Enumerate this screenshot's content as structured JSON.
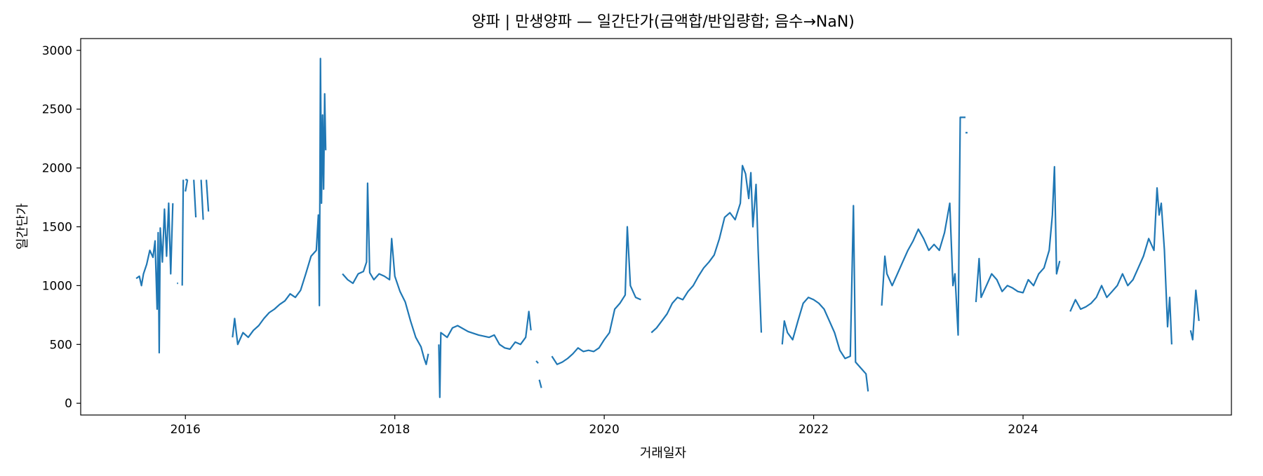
{
  "chart_data": {
    "type": "line",
    "title": "양파 | 만생양파 — 일간단가(금액합/반입량합; 음수→NaN)",
    "xlabel": "거래일자",
    "ylabel": "일간단가",
    "xlim": [
      2015.0,
      2025.99
    ],
    "ylim": [
      -100,
      3100
    ],
    "x_ticks": [
      2016,
      2018,
      2020,
      2022,
      2024
    ],
    "x_tick_labels": [
      "2016",
      "2018",
      "2020",
      "2022",
      "2024"
    ],
    "y_ticks": [
      0,
      500,
      1000,
      1500,
      2000,
      2500,
      3000
    ],
    "y_tick_labels": [
      "0",
      "500",
      "1000",
      "1500",
      "2000",
      "2500",
      "3000"
    ],
    "grid": false,
    "legend": "none",
    "line_color": "#1f77b4",
    "series": [
      {
        "segments": [
          [
            [
              2015.53,
              1060
            ],
            [
              2015.56,
              1080
            ],
            [
              2015.58,
              1000
            ],
            [
              2015.6,
              1100
            ],
            [
              2015.63,
              1180
            ],
            [
              2015.66,
              1300
            ],
            [
              2015.69,
              1240
            ],
            [
              2015.71,
              1380
            ],
            [
              2015.73,
              800
            ],
            [
              2015.74,
              1450
            ],
            [
              2015.75,
              430
            ],
            [
              2015.76,
              1490
            ],
            [
              2015.78,
              1200
            ],
            [
              2015.8,
              1650
            ],
            [
              2015.82,
              1250
            ],
            [
              2015.84,
              1700
            ],
            [
              2015.86,
              1100
            ],
            [
              2015.88,
              1700
            ]
          ],
          [
            [
              2015.92,
              1020
            ],
            [
              2015.93,
              1020
            ]
          ],
          [
            [
              2015.97,
              1000
            ],
            [
              2015.98,
              1900
            ]
          ],
          [
            [
              2016.0,
              1800
            ],
            [
              2016.02,
              1900
            ]
          ],
          [
            [
              2016.0,
              1900
            ],
            [
              2016.02,
              1900
            ]
          ],
          [
            [
              2016.08,
              1900
            ],
            [
              2016.1,
              1580
            ]
          ],
          [
            [
              2016.15,
              1900
            ],
            [
              2016.17,
              1560
            ]
          ],
          [
            [
              2016.2,
              1900
            ],
            [
              2016.22,
              1630
            ]
          ],
          [
            [
              2016.45,
              560
            ],
            [
              2016.47,
              720
            ],
            [
              2016.5,
              500
            ],
            [
              2016.55,
              600
            ],
            [
              2016.6,
              560
            ],
            [
              2016.65,
              620
            ],
            [
              2016.7,
              660
            ],
            [
              2016.75,
              720
            ],
            [
              2016.8,
              770
            ],
            [
              2016.85,
              800
            ],
            [
              2016.9,
              840
            ],
            [
              2016.95,
              870
            ],
            [
              2017.0,
              930
            ],
            [
              2017.05,
              900
            ],
            [
              2017.1,
              960
            ],
            [
              2017.15,
              1100
            ],
            [
              2017.2,
              1250
            ],
            [
              2017.25,
              1300
            ],
            [
              2017.27,
              1600
            ],
            [
              2017.28,
              830
            ],
            [
              2017.29,
              2930
            ],
            [
              2017.3,
              1700
            ],
            [
              2017.31,
              2450
            ],
            [
              2017.32,
              1820
            ],
            [
              2017.33,
              2630
            ],
            [
              2017.34,
              2150
            ]
          ],
          [
            [
              2017.5,
              1100
            ],
            [
              2017.55,
              1050
            ],
            [
              2017.6,
              1020
            ],
            [
              2017.65,
              1100
            ],
            [
              2017.7,
              1120
            ],
            [
              2017.73,
              1200
            ],
            [
              2017.74,
              1870
            ],
            [
              2017.76,
              1110
            ],
            [
              2017.8,
              1050
            ],
            [
              2017.85,
              1100
            ],
            [
              2017.9,
              1080
            ],
            [
              2017.95,
              1050
            ],
            [
              2017.97,
              1400
            ],
            [
              2018.0,
              1080
            ],
            [
              2018.05,
              950
            ],
            [
              2018.1,
              860
            ],
            [
              2018.15,
              700
            ],
            [
              2018.2,
              560
            ],
            [
              2018.25,
              480
            ],
            [
              2018.28,
              380
            ],
            [
              2018.3,
              330
            ],
            [
              2018.32,
              420
            ]
          ],
          [
            [
              2018.42,
              500
            ],
            [
              2018.43,
              50
            ],
            [
              2018.44,
              600
            ],
            [
              2018.5,
              560
            ],
            [
              2018.55,
              640
            ],
            [
              2018.6,
              660
            ],
            [
              2018.7,
              610
            ],
            [
              2018.8,
              580
            ],
            [
              2018.9,
              560
            ],
            [
              2018.95,
              580
            ],
            [
              2019.0,
              500
            ],
            [
              2019.05,
              470
            ],
            [
              2019.1,
              460
            ],
            [
              2019.15,
              520
            ],
            [
              2019.2,
              500
            ],
            [
              2019.25,
              560
            ],
            [
              2019.28,
              780
            ],
            [
              2019.3,
              620
            ]
          ],
          [
            [
              2019.35,
              360
            ],
            [
              2019.37,
              340
            ]
          ],
          [
            [
              2019.38,
              200
            ],
            [
              2019.4,
              130
            ]
          ],
          [
            [
              2019.5,
              400
            ],
            [
              2019.55,
              330
            ],
            [
              2019.6,
              350
            ],
            [
              2019.65,
              380
            ],
            [
              2019.7,
              420
            ],
            [
              2019.75,
              470
            ],
            [
              2019.8,
              440
            ],
            [
              2019.85,
              450
            ],
            [
              2019.9,
              440
            ],
            [
              2019.95,
              470
            ],
            [
              2020.0,
              540
            ],
            [
              2020.05,
              600
            ],
            [
              2020.1,
              800
            ],
            [
              2020.15,
              850
            ],
            [
              2020.2,
              920
            ],
            [
              2020.22,
              1500
            ],
            [
              2020.25,
              1000
            ],
            [
              2020.3,
              900
            ],
            [
              2020.35,
              880
            ]
          ],
          [
            [
              2020.45,
              600
            ],
            [
              2020.5,
              640
            ],
            [
              2020.55,
              700
            ],
            [
              2020.6,
              760
            ],
            [
              2020.65,
              850
            ],
            [
              2020.7,
              900
            ],
            [
              2020.75,
              880
            ],
            [
              2020.8,
              950
            ],
            [
              2020.85,
              1000
            ],
            [
              2020.9,
              1080
            ],
            [
              2020.95,
              1150
            ],
            [
              2021.0,
              1200
            ],
            [
              2021.05,
              1260
            ],
            [
              2021.1,
              1400
            ],
            [
              2021.15,
              1580
            ],
            [
              2021.2,
              1620
            ],
            [
              2021.25,
              1560
            ],
            [
              2021.3,
              1700
            ],
            [
              2021.32,
              2020
            ],
            [
              2021.35,
              1950
            ],
            [
              2021.38,
              1740
            ],
            [
              2021.4,
              1960
            ],
            [
              2021.42,
              1500
            ],
            [
              2021.45,
              1860
            ],
            [
              2021.47,
              1300
            ],
            [
              2021.5,
              600
            ]
          ],
          [
            [
              2021.7,
              500
            ],
            [
              2021.72,
              700
            ],
            [
              2021.75,
              600
            ],
            [
              2021.8,
              540
            ],
            [
              2021.85,
              700
            ],
            [
              2021.9,
              850
            ],
            [
              2021.95,
              900
            ],
            [
              2022.0,
              880
            ],
            [
              2022.05,
              850
            ],
            [
              2022.1,
              800
            ],
            [
              2022.15,
              700
            ],
            [
              2022.2,
              600
            ],
            [
              2022.25,
              450
            ],
            [
              2022.3,
              380
            ],
            [
              2022.35,
              400
            ],
            [
              2022.38,
              1680
            ],
            [
              2022.4,
              350
            ],
            [
              2022.45,
              300
            ],
            [
              2022.5,
              250
            ],
            [
              2022.52,
              100
            ]
          ],
          [
            [
              2022.65,
              830
            ],
            [
              2022.68,
              1250
            ],
            [
              2022.7,
              1100
            ],
            [
              2022.75,
              1000
            ],
            [
              2022.8,
              1100
            ],
            [
              2022.85,
              1200
            ],
            [
              2022.9,
              1300
            ],
            [
              2022.95,
              1380
            ],
            [
              2023.0,
              1480
            ],
            [
              2023.05,
              1400
            ],
            [
              2023.1,
              1300
            ],
            [
              2023.15,
              1350
            ],
            [
              2023.2,
              1300
            ],
            [
              2023.25,
              1450
            ],
            [
              2023.3,
              1700
            ],
            [
              2023.33,
              1000
            ],
            [
              2023.35,
              1100
            ],
            [
              2023.38,
              580
            ],
            [
              2023.4,
              2430
            ],
            [
              2023.45,
              2430
            ]
          ],
          [
            [
              2023.45,
              2300
            ],
            [
              2023.47,
              2300
            ]
          ],
          [
            [
              2023.55,
              860
            ],
            [
              2023.58,
              1230
            ],
            [
              2023.6,
              900
            ],
            [
              2023.65,
              1000
            ],
            [
              2023.7,
              1100
            ],
            [
              2023.75,
              1050
            ],
            [
              2023.8,
              950
            ],
            [
              2023.85,
              1000
            ],
            [
              2023.9,
              980
            ],
            [
              2023.95,
              950
            ],
            [
              2024.0,
              940
            ],
            [
              2024.05,
              1050
            ],
            [
              2024.1,
              1000
            ],
            [
              2024.15,
              1100
            ],
            [
              2024.2,
              1150
            ],
            [
              2024.25,
              1300
            ],
            [
              2024.28,
              1600
            ],
            [
              2024.3,
              2010
            ],
            [
              2024.32,
              1100
            ],
            [
              2024.35,
              1210
            ]
          ],
          [
            [
              2024.45,
              780
            ],
            [
              2024.5,
              880
            ],
            [
              2024.55,
              800
            ],
            [
              2024.6,
              820
            ],
            [
              2024.65,
              850
            ],
            [
              2024.7,
              900
            ],
            [
              2024.75,
              1000
            ],
            [
              2024.8,
              900
            ],
            [
              2024.85,
              950
            ],
            [
              2024.9,
              1000
            ],
            [
              2024.95,
              1100
            ],
            [
              2025.0,
              1000
            ],
            [
              2025.05,
              1050
            ],
            [
              2025.1,
              1150
            ],
            [
              2025.15,
              1250
            ],
            [
              2025.2,
              1400
            ],
            [
              2025.25,
              1300
            ],
            [
              2025.28,
              1830
            ],
            [
              2025.3,
              1600
            ],
            [
              2025.32,
              1700
            ],
            [
              2025.35,
              1300
            ],
            [
              2025.38,
              650
            ],
            [
              2025.4,
              900
            ],
            [
              2025.42,
              500
            ]
          ],
          [
            [
              2025.6,
              620
            ],
            [
              2025.62,
              540
            ],
            [
              2025.65,
              960
            ],
            [
              2025.68,
              700
            ]
          ]
        ]
      }
    ]
  }
}
